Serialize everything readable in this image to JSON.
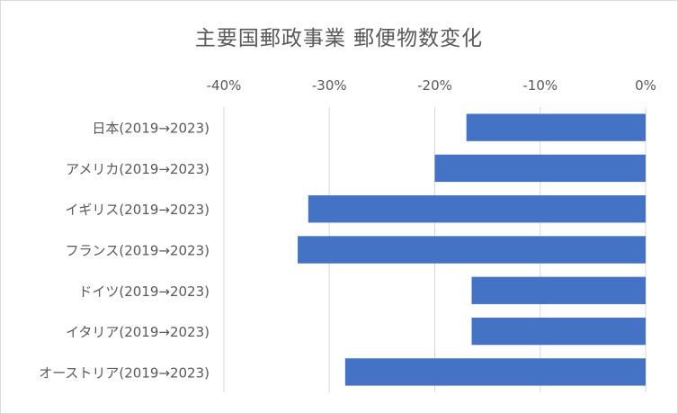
{
  "chart_data": {
    "type": "bar",
    "orientation": "horizontal",
    "title": "主要国郵政事業 郵便物数変化",
    "categories": [
      "日本(2019→2023)",
      "アメリカ(2019→2023)",
      "イギリス(2019→2023)",
      "フランス(2019→2023)",
      "ドイツ(2019→2023)",
      "イタリア(2019→2023)",
      "オーストリア(2019→2023)"
    ],
    "values": [
      -17,
      -20,
      -32,
      -33,
      -16.5,
      -16.5,
      -28.5
    ],
    "value_unit": "%",
    "xlim": [
      -40,
      0
    ],
    "xticks": [
      -40,
      -30,
      -20,
      -10,
      0
    ],
    "xtick_labels": [
      "-40%",
      "-30%",
      "-20%",
      "-10%",
      "0%"
    ],
    "x_axis_position": "top",
    "grid": true,
    "legend": "none",
    "bar_color": "#4472c4",
    "grid_color": "#d9d9d9",
    "text_color": "#595959"
  }
}
